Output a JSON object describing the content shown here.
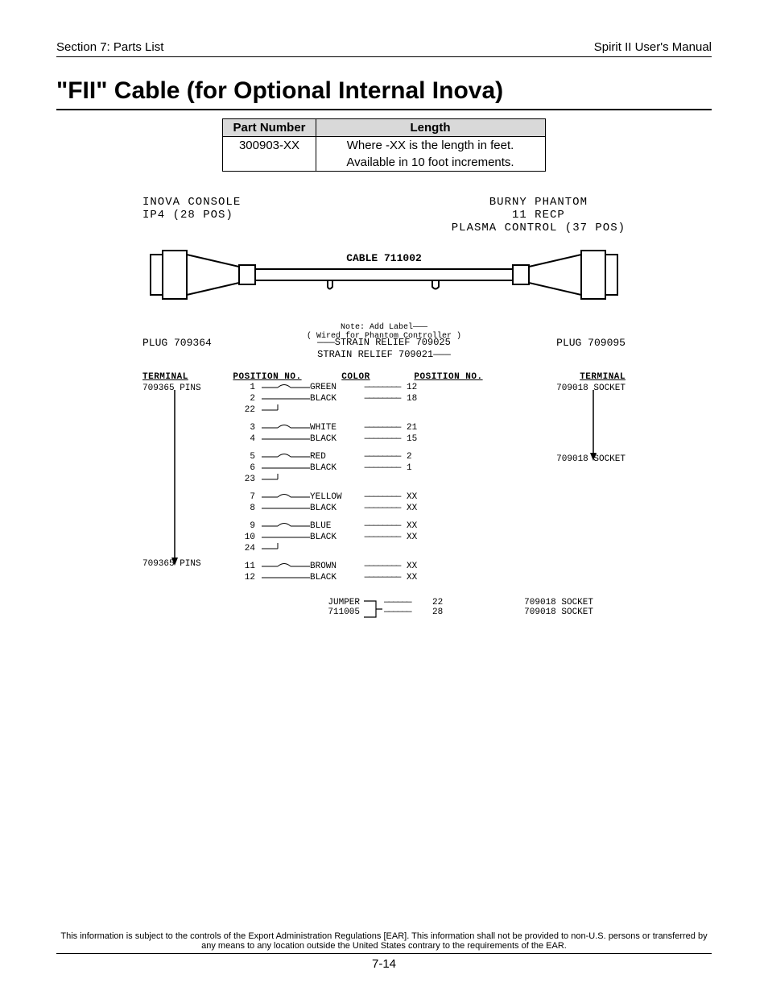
{
  "header": {
    "left": "Section 7: Parts List",
    "right": "Spirit II User's Manual"
  },
  "title": "\"FII\" Cable (for Optional Internal Inova)",
  "part_table": {
    "headers": [
      "Part Number",
      "Length"
    ],
    "rows": [
      [
        "300903-XX",
        "Where -XX is the length in feet."
      ],
      [
        "",
        "Available in 10 foot increments."
      ]
    ]
  },
  "diagram": {
    "left_connector": {
      "line1": "INOVA CONSOLE",
      "line2": "IP4 (28 POS)"
    },
    "right_connector": {
      "line1": "BURNY PHANTOM",
      "line2": "11 RECP",
      "line3": "PLASMA CONTROL (37 POS)"
    },
    "cable_label": "CABLE 711002",
    "note_line1": "Note: Add Label",
    "note_line2": "( Wired for  Phantom Controller )",
    "plug_left": "PLUG 709364",
    "plug_right": "PLUG 709095",
    "strain1": "STRAIN RELIEF 709025",
    "strain2": "STRAIN RELIEF 709021"
  },
  "wiring": {
    "headers": [
      "TERMINAL",
      "POSITION NO.",
      "COLOR",
      "POSITION NO.",
      "TERMINAL"
    ],
    "left_terminal_top": "709365 PINS",
    "left_terminal_bot": "709365 PINS",
    "right_terminal_top": "709018 SOCKET",
    "right_terminal_mid": "709018 SOCKET",
    "groups": [
      [
        {
          "pl": "1",
          "color": "GREEN",
          "pr": "12",
          "twist_top": true
        },
        {
          "pl": "2",
          "color": "BLACK",
          "pr": "18",
          "twist_bot": true
        },
        {
          "pl": "22",
          "color": "",
          "pr": "",
          "shield": true
        }
      ],
      [
        {
          "pl": "3",
          "color": "WHITE",
          "pr": "21",
          "twist_top": true
        },
        {
          "pl": "4",
          "color": "BLACK",
          "pr": "15",
          "twist_bot": true
        }
      ],
      [
        {
          "pl": "5",
          "color": "RED",
          "pr": "2",
          "twist_top": true
        },
        {
          "pl": "6",
          "color": "BLACK",
          "pr": "1",
          "twist_bot": true
        },
        {
          "pl": "23",
          "color": "",
          "pr": "",
          "shield": true
        }
      ],
      [
        {
          "pl": "7",
          "color": "YELLOW",
          "pr": "XX",
          "twist_top": true
        },
        {
          "pl": "8",
          "color": "BLACK",
          "pr": "XX",
          "twist_bot": true
        }
      ],
      [
        {
          "pl": "9",
          "color": "BLUE",
          "pr": "XX",
          "twist_top": true
        },
        {
          "pl": "10",
          "color": "BLACK",
          "pr": "XX",
          "twist_bot": true
        },
        {
          "pl": "24",
          "color": "",
          "pr": "",
          "shield": true
        }
      ],
      [
        {
          "pl": "11",
          "color": "BROWN",
          "pr": "XX",
          "twist_top": true
        },
        {
          "pl": "12",
          "color": "BLACK",
          "pr": "XX",
          "twist_bot": true
        }
      ]
    ],
    "jumper": {
      "label1": "JUMPER",
      "label2": "711005",
      "rows": [
        {
          "pr": "22",
          "term": "709018 SOCKET"
        },
        {
          "pr": "28",
          "term": "709018 SOCKET"
        }
      ]
    }
  },
  "footer": {
    "text": "This information is subject to the controls of the Export Administration Regulations [EAR].  This information shall not be provided to non-U.S. persons or transferred by any means to any location outside the United States contrary to the requirements of the EAR.",
    "page": "7-14"
  }
}
